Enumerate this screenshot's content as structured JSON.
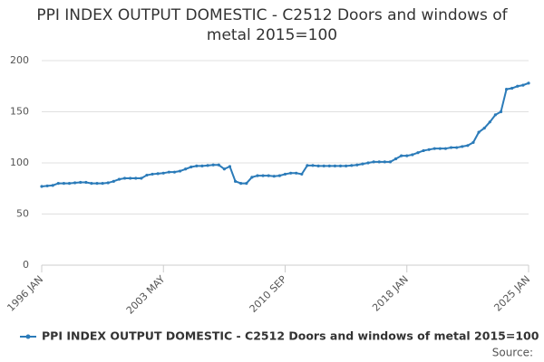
{
  "chart_data": {
    "type": "line",
    "title": "PPI INDEX OUTPUT DOMESTIC - C2512 Doors and windows of metal 2015=100",
    "source": "Source:",
    "categories": [
      "1996 JAN",
      null,
      null,
      null,
      null,
      null,
      null,
      null,
      null,
      null,
      null,
      null,
      null,
      null,
      null,
      null,
      null,
      null,
      null,
      null,
      null,
      null,
      "2003 MAY",
      null,
      null,
      null,
      null,
      null,
      null,
      null,
      null,
      null,
      null,
      null,
      null,
      null,
      null,
      null,
      null,
      null,
      null,
      null,
      null,
      null,
      "2010 SEP",
      null,
      null,
      null,
      null,
      null,
      null,
      null,
      null,
      null,
      null,
      null,
      null,
      null,
      null,
      null,
      null,
      null,
      null,
      null,
      null,
      null,
      "2018 JAN",
      null,
      null,
      null,
      null,
      null,
      null,
      null,
      null,
      null,
      null,
      null,
      null,
      null,
      null,
      null,
      null,
      null,
      null,
      null,
      null,
      null,
      "2025 JAN"
    ],
    "series": [
      {
        "name": "PPI INDEX OUTPUT DOMESTIC - C2512 Doors and windows of metal 2015=100",
        "color": "#2b7bb9",
        "values": [
          77,
          77.5,
          78,
          80,
          80,
          80,
          80.5,
          81,
          81,
          80,
          80,
          80,
          80.5,
          82,
          84,
          85,
          85,
          85,
          85,
          88,
          89,
          89.5,
          90,
          91,
          91,
          92,
          94,
          96,
          97,
          97,
          97.5,
          98,
          98,
          94,
          96.5,
          82,
          80,
          80,
          86,
          87.5,
          87.5,
          87.5,
          87,
          87.5,
          89,
          90,
          90,
          89,
          97.5,
          97.5,
          97,
          97,
          97,
          97,
          97,
          97,
          97.5,
          98,
          99,
          100,
          101,
          101,
          101,
          101,
          104,
          107,
          107,
          108,
          110,
          112,
          113,
          114,
          114,
          114,
          115,
          115,
          116,
          117,
          120,
          130,
          134,
          140,
          147,
          150,
          172,
          173,
          175,
          176,
          178
        ]
      }
    ],
    "ylim": [
      0,
      200
    ],
    "yticks": [
      0,
      50,
      100,
      150,
      200
    ],
    "grid": true
  }
}
